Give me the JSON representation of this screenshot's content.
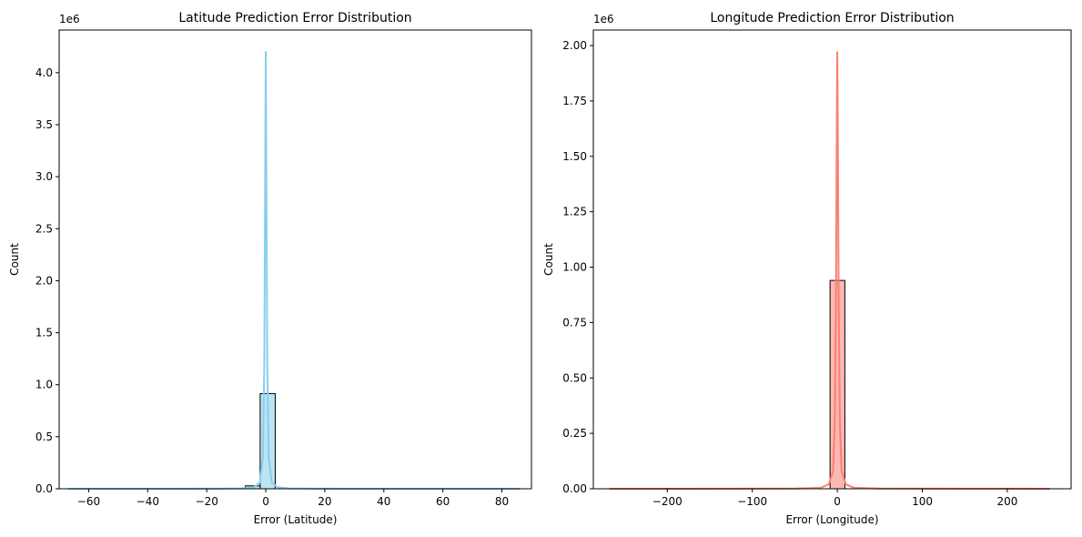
{
  "chart_data": [
    {
      "type": "histogram",
      "title": "Latitude Prediction Error Distribution",
      "xlabel": "Error (Latitude)",
      "ylabel": "Count",
      "y_offset_label": "1e6",
      "xlim": [
        -70,
        90
      ],
      "ylim": [
        0,
        4410000
      ],
      "xticks": [
        -60,
        -40,
        -20,
        0,
        20,
        40,
        60,
        80
      ],
      "xtick_labels": [
        "−60",
        "−40",
        "−20",
        "0",
        "20",
        "40",
        "60",
        "80"
      ],
      "yticks": [
        0,
        500000,
        1000000,
        1500000,
        2000000,
        2500000,
        3000000,
        3500000,
        4000000
      ],
      "ytick_labels": [
        "0.0",
        "0.5",
        "1.0",
        "1.5",
        "2.0",
        "2.5",
        "3.0",
        "3.5",
        "4.0"
      ],
      "grid": false,
      "color": "#87ceeb",
      "bins": [
        {
          "x0": -6.9,
          "x1": -1.9,
          "count": 28000
        },
        {
          "x0": -1.9,
          "x1": 3.2,
          "count": 915000
        }
      ],
      "kde": {
        "x": [
          -67,
          -30,
          -15,
          -8,
          -4,
          -2,
          -1,
          -0.5,
          -0.2,
          0,
          0.2,
          0.5,
          1,
          2,
          4,
          8,
          15,
          30,
          86
        ],
        "y": [
          0,
          200,
          800,
          3000,
          15000,
          60000,
          300000,
          1200000,
          3000000,
          4200000,
          3000000,
          1200000,
          300000,
          60000,
          15000,
          3000,
          800,
          200,
          0
        ]
      }
    },
    {
      "type": "histogram",
      "title": "Longitude Prediction Error Distribution",
      "xlabel": "Error (Longitude)",
      "ylabel": "Count",
      "y_offset_label": "1e6",
      "xlim": [
        -287,
        275
      ],
      "ylim": [
        0,
        2070000
      ],
      "xticks": [
        -200,
        -100,
        0,
        100,
        200
      ],
      "xtick_labels": [
        "−200",
        "−100",
        "0",
        "100",
        "200"
      ],
      "yticks": [
        0,
        250000,
        500000,
        750000,
        1000000,
        1250000,
        1500000,
        1750000,
        2000000
      ],
      "ytick_labels": [
        "0.00",
        "0.25",
        "0.50",
        "0.75",
        "1.00",
        "1.25",
        "1.50",
        "1.75",
        "2.00"
      ],
      "grid": false,
      "color": "#fa8072",
      "bins": [
        {
          "x0": -8.5,
          "x1": 8.9,
          "count": 940000
        }
      ],
      "kde": {
        "x": [
          -268,
          -100,
          -50,
          -20,
          -10,
          -5,
          -3,
          -1.5,
          -0.5,
          0,
          0.5,
          1.5,
          3,
          5,
          10,
          20,
          50,
          100,
          250
        ],
        "y": [
          0,
          300,
          1000,
          4000,
          20000,
          80000,
          300000,
          900000,
          1700000,
          1970000,
          1700000,
          900000,
          300000,
          80000,
          20000,
          4000,
          1000,
          300,
          0
        ]
      }
    }
  ]
}
